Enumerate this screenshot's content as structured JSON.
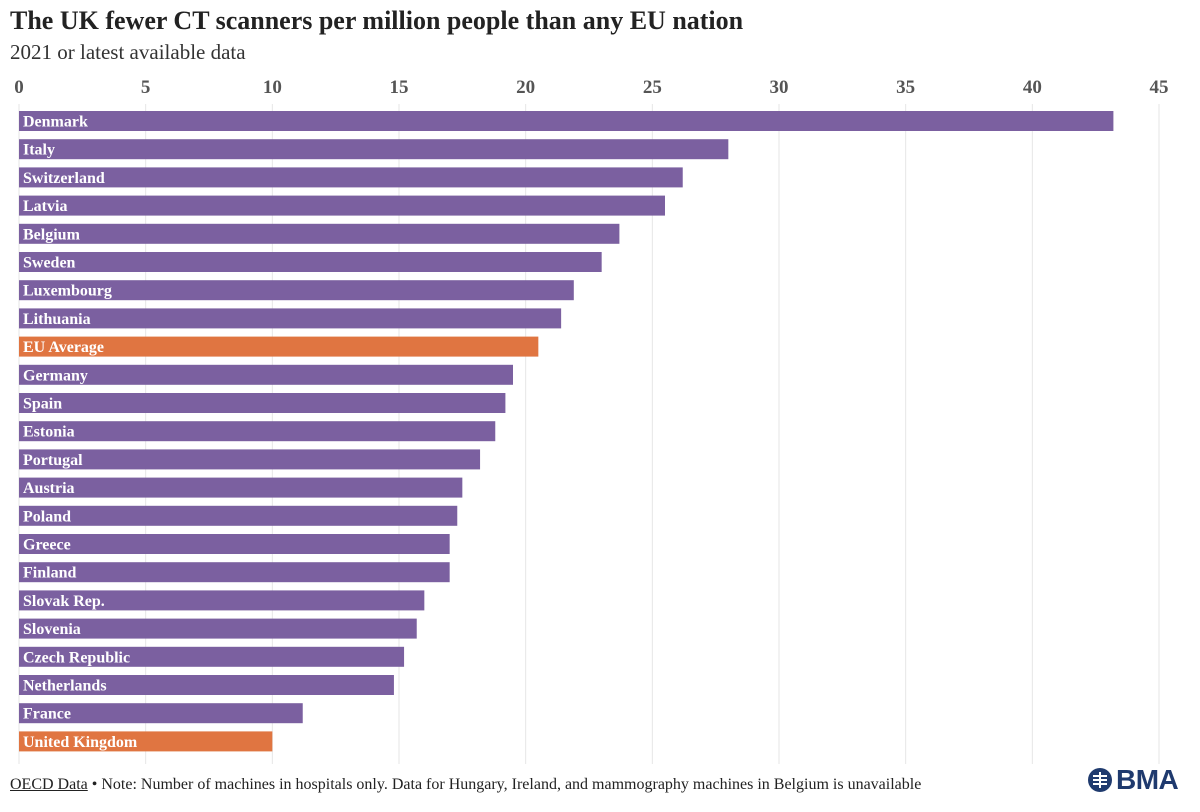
{
  "header": {
    "title": "The UK fewer CT scanners per million people than any EU nation",
    "subtitle": "2021 or latest available data"
  },
  "footer": {
    "source": "OECD Data",
    "note": " • Note: Number of machines in hospitals only. Data for Hungary, Ireland, and mammography machines in Belgium is unavailable"
  },
  "logo": {
    "text": "BMA",
    "icon": "bma-emblem-icon"
  },
  "colors": {
    "bar": "#7b60a0",
    "highlight": "#e07541",
    "grid": "#e6e6e6",
    "tick": "#555555"
  },
  "chart_data": {
    "type": "bar",
    "orientation": "horizontal",
    "title": "The UK fewer CT scanners per million people than any EU nation",
    "subtitle": "2021 or latest available data",
    "xlabel": "",
    "ylabel": "",
    "xlim": [
      0,
      45
    ],
    "xticks": [
      0,
      5,
      10,
      15,
      20,
      25,
      30,
      35,
      40,
      45
    ],
    "axis_position": "top",
    "grid": true,
    "categories": [
      "Denmark",
      "Italy",
      "Switzerland",
      "Latvia",
      "Belgium",
      "Sweden",
      "Luxembourg",
      "Lithuania",
      "EU Average",
      "Germany",
      "Spain",
      "Estonia",
      "Portugal",
      "Austria",
      "Poland",
      "Greece",
      "Finland",
      "Slovak Rep.",
      "Slovenia",
      "Czech Republic",
      "Netherlands",
      "France",
      "United Kingdom"
    ],
    "values": [
      43.2,
      28.0,
      26.2,
      25.5,
      23.7,
      23.0,
      21.9,
      21.4,
      20.5,
      19.5,
      19.2,
      18.8,
      18.2,
      17.5,
      17.3,
      17.0,
      17.0,
      16.0,
      15.7,
      15.2,
      14.8,
      11.2,
      10.0
    ],
    "highlighted": [
      "EU Average",
      "United Kingdom"
    ]
  }
}
